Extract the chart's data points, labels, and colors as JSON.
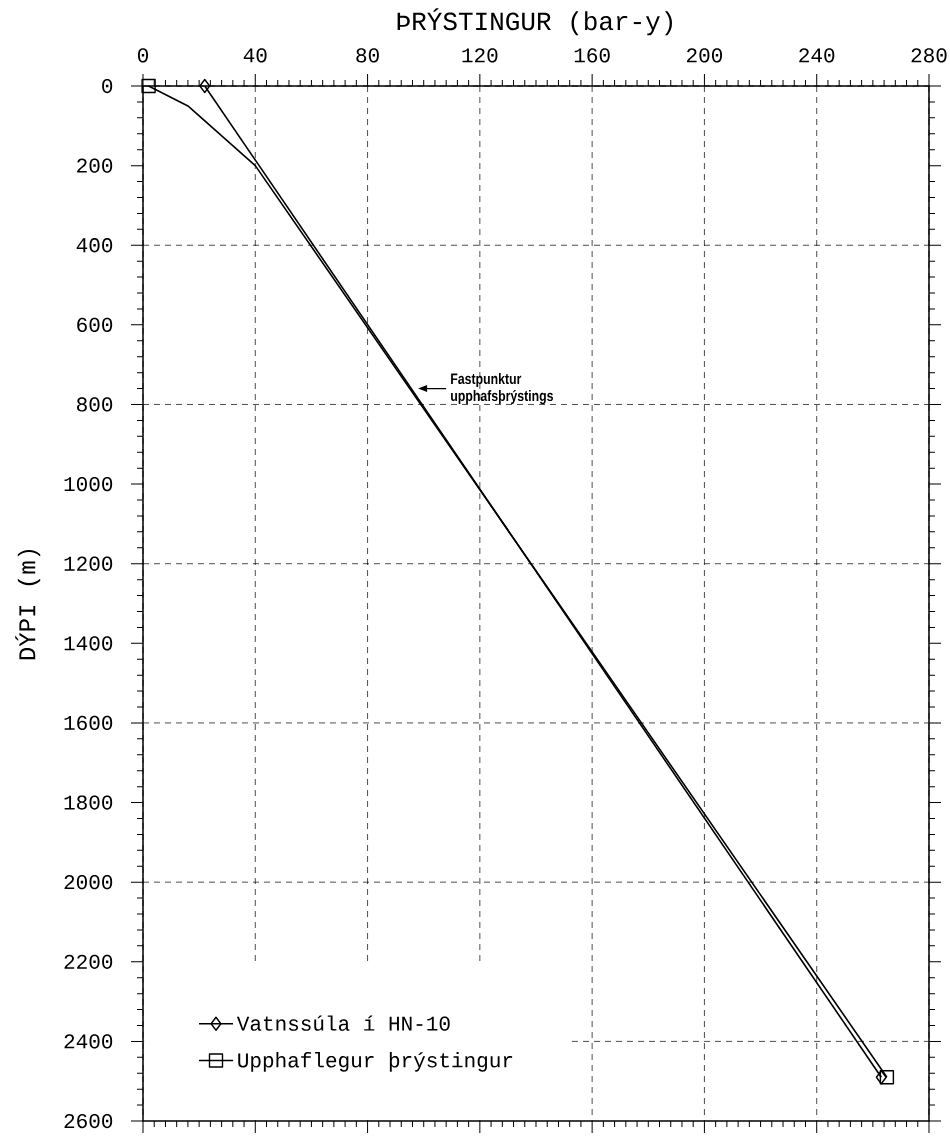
{
  "chart_data": {
    "type": "line",
    "xlabel": "ÞRÝSTINGUR (bar-y)",
    "ylabel": "DÝPI (m)",
    "series": [
      {
        "name": "Vatnssúla í HN-10",
        "color": "#000000",
        "marker": "diamond",
        "line_style": "solid",
        "x": [
          22,
          263
        ],
        "values": [
          0,
          2490
        ]
      },
      {
        "name": "Upphaflegur þrýstingur",
        "color": "#000000",
        "marker": "square",
        "line_style": "solid",
        "x": [
          2,
          16,
          40,
          265
        ],
        "values": [
          0,
          50,
          200,
          2490
        ]
      }
    ],
    "xlim": [
      0,
      280
    ],
    "xticks": [
      0,
      40,
      80,
      120,
      160,
      200,
      240,
      280
    ],
    "ylim": [
      2600,
      0
    ],
    "yticks": [
      0,
      200,
      400,
      600,
      800,
      1000,
      1200,
      1400,
      1600,
      1800,
      2000,
      2200,
      2400,
      2600
    ],
    "grid": true,
    "legend": "bottom left",
    "annotations": [
      {
        "text": "Fastpunktur upphafsþrýstings",
        "x": 98,
        "y": 760
      }
    ]
  }
}
